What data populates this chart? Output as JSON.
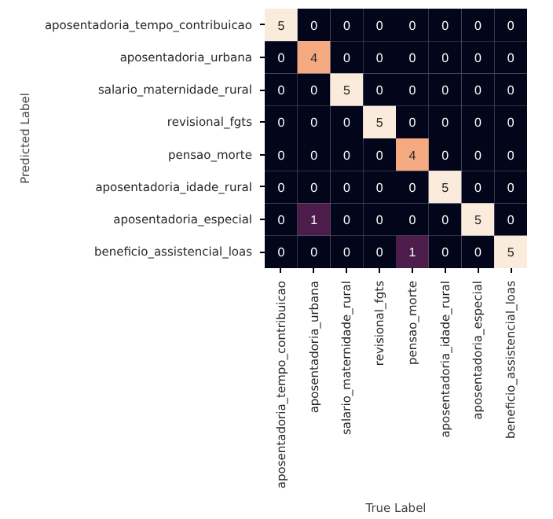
{
  "chart_data": {
    "type": "heatmap",
    "data_labels": true,
    "xlabel": "True Label",
    "ylabel": "Predicted Label",
    "categories": [
      "aposentadoria_tempo_contribuicao",
      "aposentadoria_urbana",
      "salario_maternidade_rural",
      "revisional_fgts",
      "pensao_morte",
      "aposentadoria_idade_rural",
      "aposentadoria_especial",
      "beneficio_assistencial_loas"
    ],
    "y_categories": [
      "aposentadoria_tempo_contribuicao",
      "aposentadoria_urbana",
      "salario_maternidade_rural",
      "revisional_fgts",
      "pensao_morte",
      "aposentadoria_idade_rural",
      "aposentadoria_especial",
      "beneficio_assistencial_loas"
    ],
    "cells": [
      [
        5,
        0,
        0,
        0,
        0,
        0,
        0,
        0
      ],
      [
        0,
        4,
        0,
        0,
        0,
        0,
        0,
        0
      ],
      [
        0,
        0,
        5,
        0,
        0,
        0,
        0,
        0
      ],
      [
        0,
        0,
        0,
        5,
        0,
        0,
        0,
        0
      ],
      [
        0,
        0,
        0,
        0,
        4,
        0,
        0,
        0
      ],
      [
        0,
        0,
        0,
        0,
        0,
        5,
        0,
        0
      ],
      [
        0,
        1,
        0,
        0,
        0,
        0,
        5,
        0
      ],
      [
        0,
        0,
        0,
        0,
        1,
        0,
        0,
        5
      ]
    ]
  }
}
